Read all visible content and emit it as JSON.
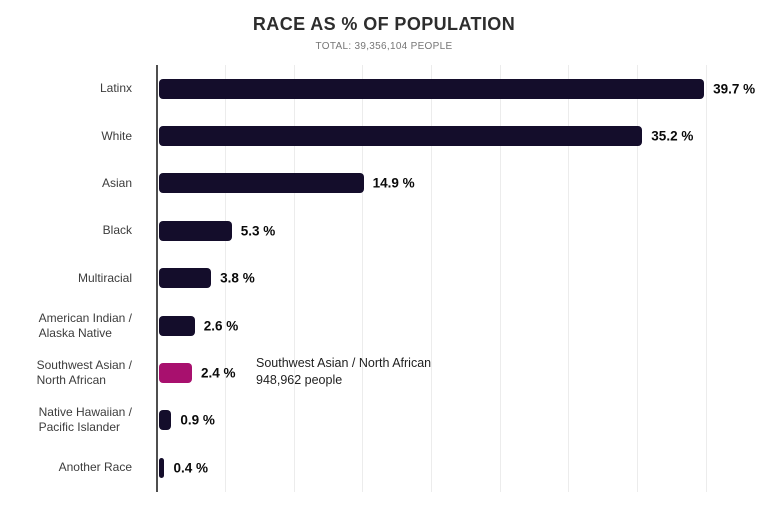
{
  "chart_data": {
    "type": "bar",
    "orientation": "horizontal",
    "title": "RACE AS % OF POPULATION",
    "subtitle": "TOTAL: 39,356,104 PEOPLE",
    "xlabel": "",
    "ylabel": "",
    "xlim": [
      0,
      44.5
    ],
    "grid": true,
    "gridlines_percent": [
      5,
      10,
      15,
      20,
      25,
      30,
      35,
      40
    ],
    "categories": [
      "Latinx",
      "White",
      "Asian",
      "Black",
      "Multiracial",
      "American Indian / Alaska Native",
      "Southwest Asian / North African",
      "Native Hawaiian / Pacific Islander",
      "Another Race"
    ],
    "values": [
      39.7,
      35.2,
      14.9,
      5.3,
      3.8,
      2.6,
      2.4,
      0.9,
      0.4
    ],
    "items": [
      {
        "label_lines": [
          "Latinx"
        ],
        "value": 39.7,
        "value_label": "39.7 %",
        "highlighted": false
      },
      {
        "label_lines": [
          "White"
        ],
        "value": 35.2,
        "value_label": "35.2 %",
        "highlighted": false
      },
      {
        "label_lines": [
          "Asian"
        ],
        "value": 14.9,
        "value_label": "14.9 %",
        "highlighted": false
      },
      {
        "label_lines": [
          "Black"
        ],
        "value": 5.3,
        "value_label": "5.3 %",
        "highlighted": false
      },
      {
        "label_lines": [
          "Multiracial"
        ],
        "value": 3.8,
        "value_label": "3.8 %",
        "highlighted": false
      },
      {
        "label_lines": [
          "American Indian /",
          "Alaska Native"
        ],
        "value": 2.6,
        "value_label": "2.6 %",
        "highlighted": false
      },
      {
        "label_lines": [
          "Southwest Asian /",
          "North African"
        ],
        "value": 2.4,
        "value_label": "2.4 %",
        "highlighted": true
      },
      {
        "label_lines": [
          "Native Hawaiian /",
          "Pacific Islander"
        ],
        "value": 0.9,
        "value_label": "0.9 %",
        "highlighted": false
      },
      {
        "label_lines": [
          "Another Race"
        ],
        "value": 0.4,
        "value_label": "0.4 %",
        "highlighted": false
      }
    ],
    "colors": {
      "bar": "#140d2b",
      "highlight": "#a8106e",
      "gridline": "#ececec",
      "axis": "#4f4f4f"
    },
    "annotation": {
      "line1": "Southwest Asian / North African",
      "line2": "948,962 people",
      "attached_to": "Southwest Asian / North African"
    }
  }
}
